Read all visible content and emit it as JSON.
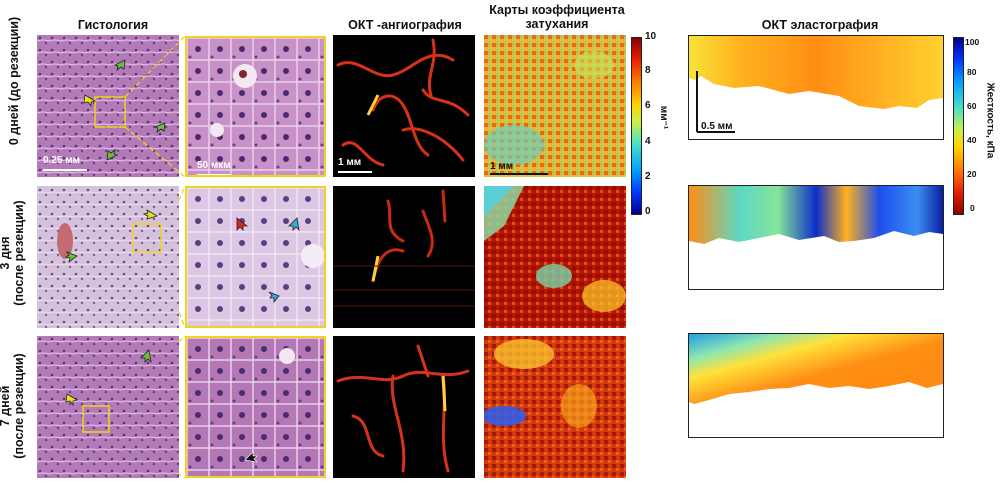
{
  "columns": {
    "histology": "Гистология",
    "angiography": "ОКТ -ангиография",
    "attenuation_line1": "Карты коэффициента",
    "attenuation_line2": "затухания",
    "elastography": "ОКТ эластография"
  },
  "rows": [
    {
      "line1": "0 дней (до резекции)",
      "line2": ""
    },
    {
      "line1": "3 дня",
      "line2": "(после резекции)"
    },
    {
      "line1": "7 дней",
      "line2": "(после резекции)"
    }
  ],
  "scalebars": {
    "histology_low": "0.25 мм",
    "histology_high": "50 мкм",
    "angiography": "1 мм",
    "attenuation": "1 мм",
    "elastography": "0.5 мм"
  },
  "attenuation_colorbar": {
    "unit": "мм⁻¹",
    "ticks": [
      "10",
      "8",
      "6",
      "4",
      "2",
      "0"
    ],
    "min": 0,
    "max": 10,
    "colormap": "jet"
  },
  "stiffness_colorbar": {
    "label": "Жесткость, кПа",
    "ticks": [
      "100",
      "80",
      "60",
      "40",
      "20",
      "0"
    ],
    "min": 0,
    "max": 100,
    "colormap": "jet-reversed"
  },
  "arrows": {
    "yellow": "#f0e020",
    "green": "#6cbf3c",
    "red": "#e02020",
    "blue": "#38a8e0",
    "black": "#111111"
  },
  "colors": {
    "zoom_frame": "#f2d21c",
    "histology_stain": "#b478b4",
    "angio_background": "#000000"
  }
}
